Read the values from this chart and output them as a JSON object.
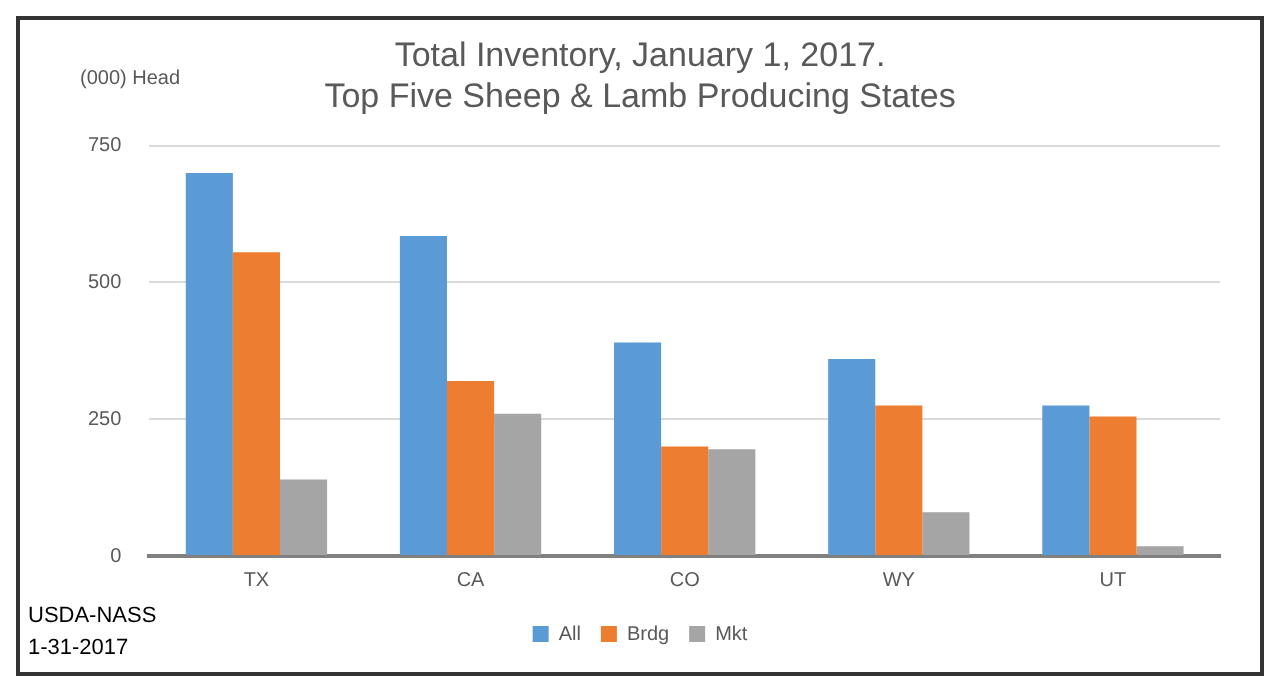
{
  "chart_data": {
    "type": "bar",
    "title": "Total Inventory, January 1, 2017.",
    "subtitle": "Top Five Sheep & Lamb Producing States",
    "ylabel": "(000) Head",
    "categories": [
      "TX",
      "CA",
      "CO",
      "WY",
      "UT"
    ],
    "series": [
      {
        "name": "All",
        "color": "#5b9bd5",
        "values": [
          700,
          585,
          390,
          360,
          275
        ]
      },
      {
        "name": "Brdg",
        "color": "#ed7d31",
        "values": [
          555,
          320,
          200,
          275,
          255
        ]
      },
      {
        "name": "Mkt",
        "color": "#a5a5a5",
        "values": [
          140,
          260,
          195,
          80,
          18
        ]
      }
    ],
    "ylim": [
      0,
      750
    ],
    "yticks": [
      0,
      250,
      500,
      750
    ],
    "grid": "y",
    "legend": "bottom",
    "annotations": [
      "USDA-NASS",
      "1-31-2017"
    ]
  }
}
